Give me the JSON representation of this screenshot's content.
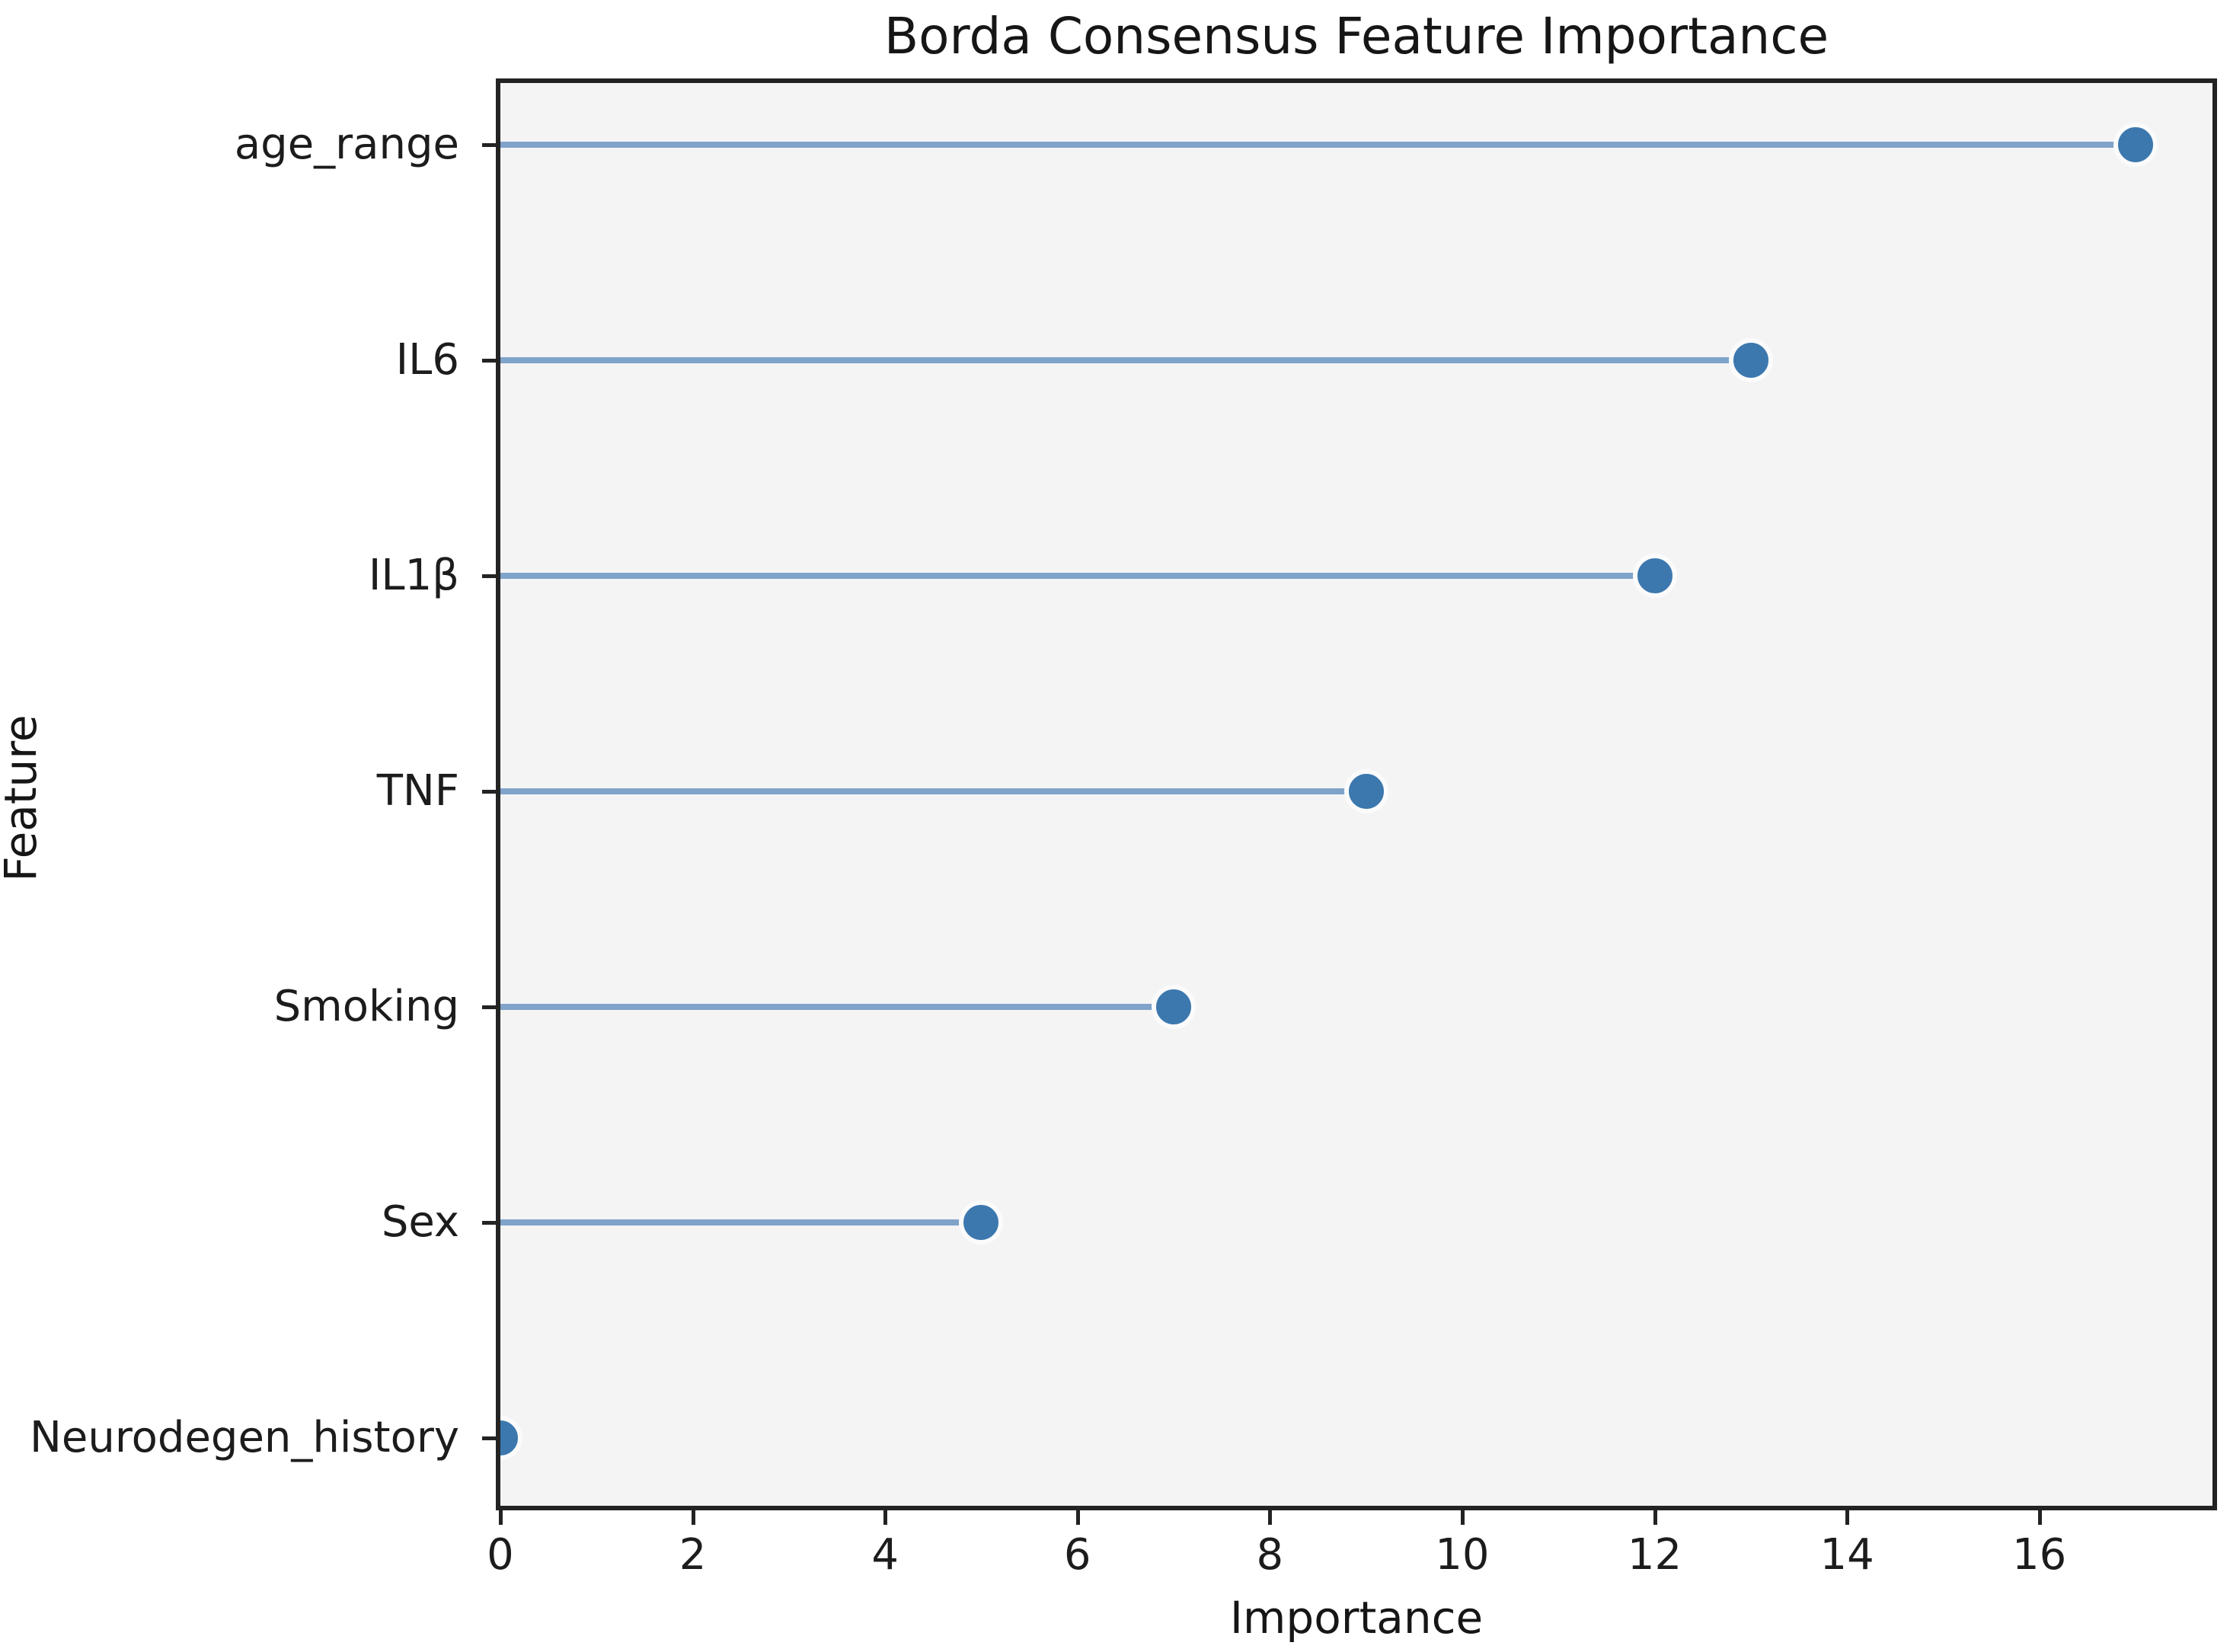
{
  "chart_title": "Borda Consensus Feature Importance",
  "axes": {
    "x_label": "Importance",
    "y_label": "Feature"
  },
  "chart_data": {
    "type": "scatter",
    "subtype": "horizontal-lollipop",
    "title": "Borda Consensus Feature Importance",
    "xlabel": "Importance",
    "ylabel": "Feature",
    "categories": [
      "age_range",
      "IL6",
      "IL1β",
      "TNF",
      "Smoking",
      "Sex",
      "Neurodegen_history"
    ],
    "values": [
      17,
      13,
      12,
      9,
      7,
      5,
      0
    ],
    "xlim": [
      0,
      17.8
    ],
    "xticks": [
      0,
      2,
      4,
      6,
      8,
      10,
      12,
      14,
      16
    ],
    "grid": false,
    "legend": "none",
    "colors": {
      "marker_fill": "#3c78ae",
      "marker_edge": "#fbfbfc",
      "stem": "#7fa3c9",
      "panel_background": "#f4f4f5",
      "spine": "#232323",
      "text": "#1a1a1a"
    }
  }
}
